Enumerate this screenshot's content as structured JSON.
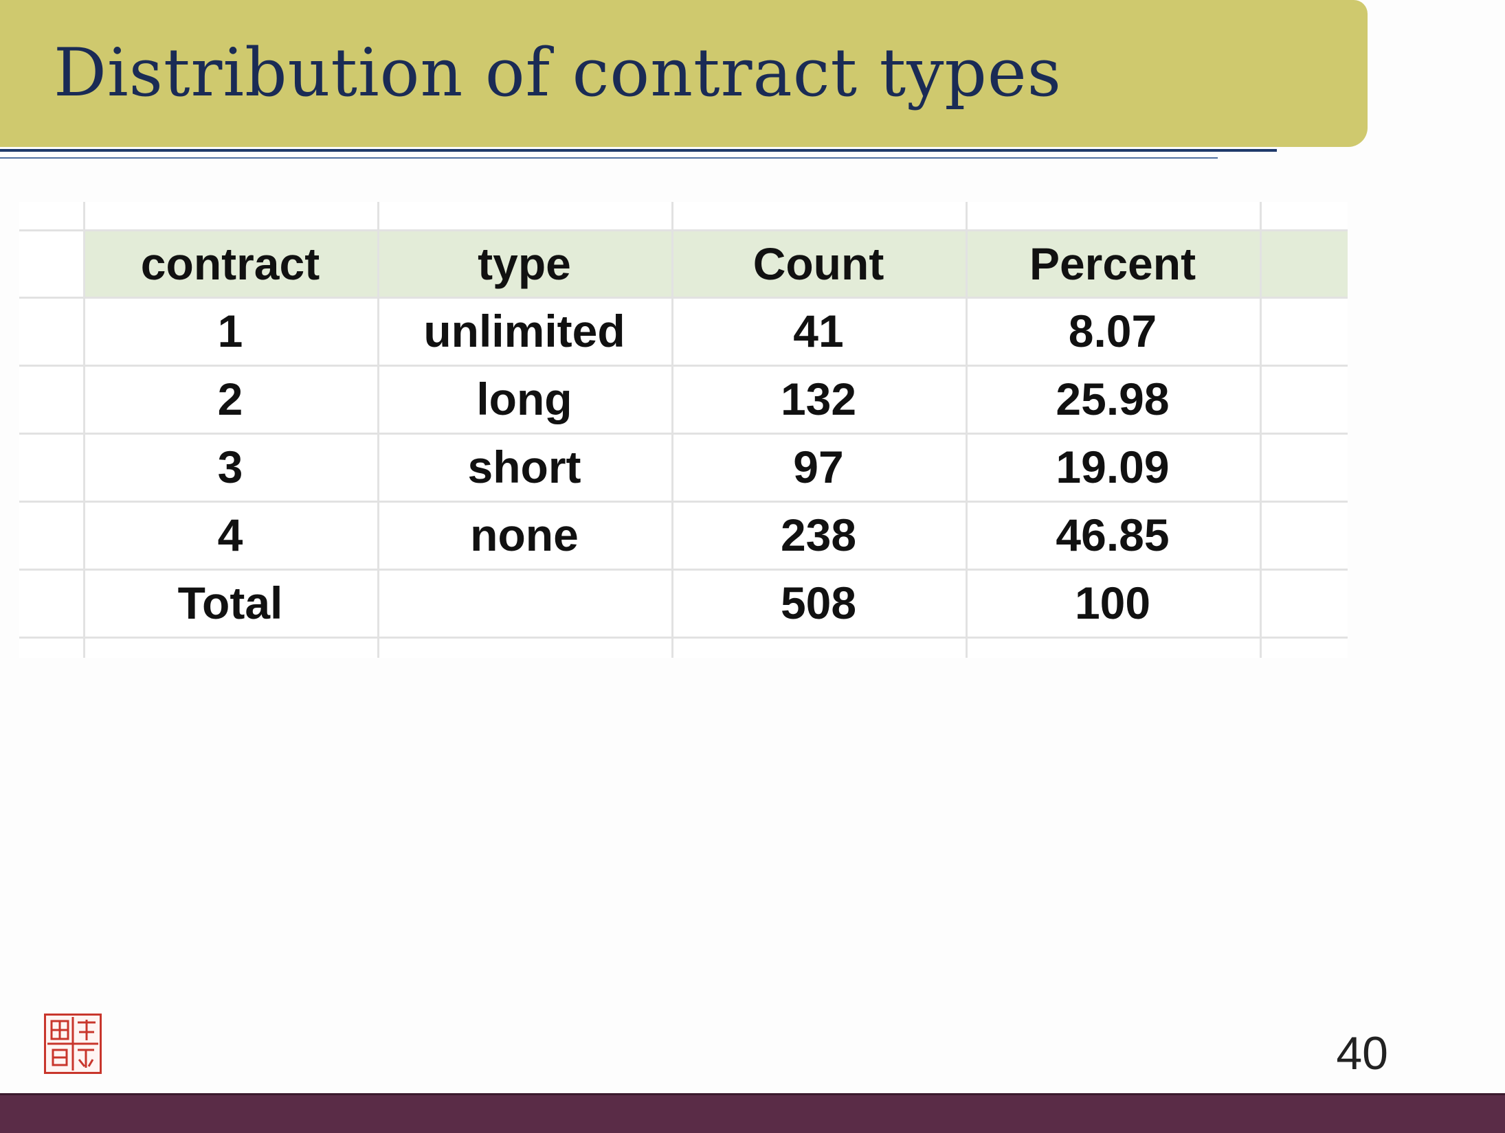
{
  "slide": {
    "title": "Distribution of contract types",
    "page_number": "40",
    "colors": {
      "title_bar": "#cfc96e",
      "title_text": "#1a2b55",
      "header_row": "#e3ecd8",
      "footer_bar": "#5a2c47",
      "seal": "#c8362c"
    }
  },
  "table": {
    "headers": [
      "contract",
      "type",
      "Count",
      "Percent"
    ],
    "rows": [
      [
        "1",
        "unlimited",
        "41",
        "8.07"
      ],
      [
        "2",
        "long",
        "132",
        "25.98"
      ],
      [
        "3",
        "short",
        "97",
        "19.09"
      ],
      [
        "4",
        "none",
        "238",
        "46.85"
      ],
      [
        "Total",
        "",
        "508",
        "100"
      ]
    ]
  },
  "seal": {
    "icon": "red-seal-stamp-icon"
  }
}
